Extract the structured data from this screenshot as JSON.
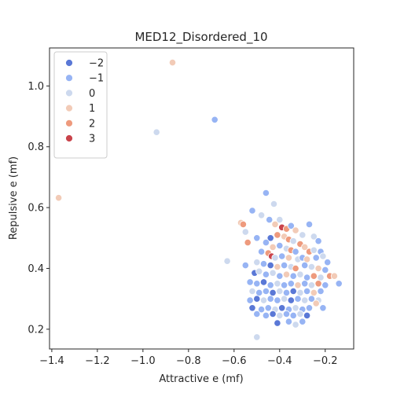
{
  "chart_data": {
    "type": "scatter",
    "title": "MED12_Disordered_10",
    "xlabel": "Attractive e (mf)",
    "ylabel": "Repulsive e (mf)",
    "xlim": [
      -1.41,
      -0.075
    ],
    "ylim": [
      0.135,
      1.125
    ],
    "xticks": [
      -1.4,
      -1.2,
      -1.0,
      -0.8,
      -0.6,
      -0.4,
      -0.2
    ],
    "xtick_labels": [
      "−1.4",
      "−1.2",
      "−1.0",
      "−0.8",
      "−0.6",
      "−0.4",
      "−0.2"
    ],
    "yticks": [
      0.2,
      0.4,
      0.6,
      0.8,
      1.0
    ],
    "ytick_labels": [
      "0.2",
      "0.4",
      "0.6",
      "0.8",
      "1.0"
    ],
    "grid": false,
    "legend_position": "top-left",
    "hue_levels": [
      {
        "value": -2,
        "label": "−2",
        "color": "#5a78d6"
      },
      {
        "value": -1,
        "label": "−1",
        "color": "#97b4f4"
      },
      {
        "value": 0,
        "label": "0",
        "color": "#cdd9ee"
      },
      {
        "value": 1,
        "label": "1",
        "color": "#f2cbb7"
      },
      {
        "value": 2,
        "label": "2",
        "color": "#ee9a7d"
      },
      {
        "value": 3,
        "label": "3",
        "color": "#c9434b"
      }
    ],
    "points": [
      {
        "x": -1.37,
        "y": 0.632,
        "hue": 1
      },
      {
        "x": -0.87,
        "y": 1.077,
        "hue": 1
      },
      {
        "x": -0.94,
        "y": 0.848,
        "hue": 0
      },
      {
        "x": -0.685,
        "y": 0.889,
        "hue": -1
      },
      {
        "x": -0.63,
        "y": 0.424,
        "hue": 0
      },
      {
        "x": -0.57,
        "y": 0.55,
        "hue": 1
      },
      {
        "x": -0.56,
        "y": 0.545,
        "hue": 2
      },
      {
        "x": -0.5,
        "y": 0.174,
        "hue": 0
      },
      {
        "x": -0.46,
        "y": 0.648,
        "hue": -1
      },
      {
        "x": -0.425,
        "y": 0.612,
        "hue": 0
      },
      {
        "x": -0.52,
        "y": 0.59,
        "hue": -1
      },
      {
        "x": -0.55,
        "y": 0.52,
        "hue": 0
      },
      {
        "x": -0.54,
        "y": 0.485,
        "hue": 2
      },
      {
        "x": -0.5,
        "y": 0.5,
        "hue": -1
      },
      {
        "x": -0.48,
        "y": 0.575,
        "hue": 0
      },
      {
        "x": -0.445,
        "y": 0.56,
        "hue": -1
      },
      {
        "x": -0.4,
        "y": 0.56,
        "hue": 0
      },
      {
        "x": -0.42,
        "y": 0.545,
        "hue": 1
      },
      {
        "x": -0.39,
        "y": 0.535,
        "hue": 3
      },
      {
        "x": -0.37,
        "y": 0.53,
        "hue": 2
      },
      {
        "x": -0.35,
        "y": 0.54,
        "hue": -1
      },
      {
        "x": -0.33,
        "y": 0.525,
        "hue": 1
      },
      {
        "x": -0.3,
        "y": 0.51,
        "hue": 0
      },
      {
        "x": -0.27,
        "y": 0.545,
        "hue": -1
      },
      {
        "x": -0.25,
        "y": 0.505,
        "hue": 0
      },
      {
        "x": -0.23,
        "y": 0.49,
        "hue": -1
      },
      {
        "x": -0.41,
        "y": 0.51,
        "hue": 2
      },
      {
        "x": -0.38,
        "y": 0.505,
        "hue": 1
      },
      {
        "x": -0.36,
        "y": 0.495,
        "hue": 2
      },
      {
        "x": -0.34,
        "y": 0.49,
        "hue": 0
      },
      {
        "x": -0.31,
        "y": 0.48,
        "hue": 2
      },
      {
        "x": -0.29,
        "y": 0.47,
        "hue": 1
      },
      {
        "x": -0.44,
        "y": 0.5,
        "hue": -2
      },
      {
        "x": -0.46,
        "y": 0.485,
        "hue": -1
      },
      {
        "x": -0.43,
        "y": 0.47,
        "hue": 1
      },
      {
        "x": -0.4,
        "y": 0.475,
        "hue": -1
      },
      {
        "x": -0.37,
        "y": 0.465,
        "hue": 0
      },
      {
        "x": -0.35,
        "y": 0.46,
        "hue": 2
      },
      {
        "x": -0.33,
        "y": 0.455,
        "hue": -1
      },
      {
        "x": -0.27,
        "y": 0.455,
        "hue": 2
      },
      {
        "x": -0.25,
        "y": 0.46,
        "hue": 0
      },
      {
        "x": -0.22,
        "y": 0.455,
        "hue": -1
      },
      {
        "x": -0.48,
        "y": 0.455,
        "hue": -1
      },
      {
        "x": -0.45,
        "y": 0.45,
        "hue": 2
      },
      {
        "x": -0.435,
        "y": 0.44,
        "hue": 3
      },
      {
        "x": -0.42,
        "y": 0.435,
        "hue": 0
      },
      {
        "x": -0.39,
        "y": 0.44,
        "hue": -1
      },
      {
        "x": -0.36,
        "y": 0.435,
        "hue": 1
      },
      {
        "x": -0.32,
        "y": 0.43,
        "hue": 0
      },
      {
        "x": -0.3,
        "y": 0.435,
        "hue": -1
      },
      {
        "x": -0.28,
        "y": 0.43,
        "hue": 1
      },
      {
        "x": -0.24,
        "y": 0.435,
        "hue": -1
      },
      {
        "x": -0.21,
        "y": 0.44,
        "hue": 0
      },
      {
        "x": -0.19,
        "y": 0.42,
        "hue": -1
      },
      {
        "x": -0.55,
        "y": 0.41,
        "hue": -1
      },
      {
        "x": -0.5,
        "y": 0.42,
        "hue": 0
      },
      {
        "x": -0.47,
        "y": 0.415,
        "hue": -1
      },
      {
        "x": -0.44,
        "y": 0.41,
        "hue": -2
      },
      {
        "x": -0.41,
        "y": 0.405,
        "hue": 1
      },
      {
        "x": -0.38,
        "y": 0.41,
        "hue": -1
      },
      {
        "x": -0.35,
        "y": 0.405,
        "hue": 0
      },
      {
        "x": -0.33,
        "y": 0.4,
        "hue": 2
      },
      {
        "x": -0.29,
        "y": 0.41,
        "hue": -1
      },
      {
        "x": -0.26,
        "y": 0.405,
        "hue": 0
      },
      {
        "x": -0.23,
        "y": 0.4,
        "hue": 1
      },
      {
        "x": -0.2,
        "y": 0.395,
        "hue": -1
      },
      {
        "x": -0.51,
        "y": 0.385,
        "hue": -2
      },
      {
        "x": -0.49,
        "y": 0.39,
        "hue": 0
      },
      {
        "x": -0.46,
        "y": 0.38,
        "hue": -1
      },
      {
        "x": -0.43,
        "y": 0.385,
        "hue": 0
      },
      {
        "x": -0.4,
        "y": 0.375,
        "hue": -1
      },
      {
        "x": -0.37,
        "y": 0.38,
        "hue": 1
      },
      {
        "x": -0.34,
        "y": 0.375,
        "hue": -1
      },
      {
        "x": -0.31,
        "y": 0.38,
        "hue": 0
      },
      {
        "x": -0.28,
        "y": 0.37,
        "hue": -1
      },
      {
        "x": -0.25,
        "y": 0.375,
        "hue": 2
      },
      {
        "x": -0.22,
        "y": 0.37,
        "hue": 0
      },
      {
        "x": -0.18,
        "y": 0.375,
        "hue": 2
      },
      {
        "x": -0.16,
        "y": 0.375,
        "hue": 1
      },
      {
        "x": -0.14,
        "y": 0.35,
        "hue": -1
      },
      {
        "x": -0.53,
        "y": 0.355,
        "hue": -1
      },
      {
        "x": -0.5,
        "y": 0.35,
        "hue": -1
      },
      {
        "x": -0.47,
        "y": 0.355,
        "hue": -2
      },
      {
        "x": -0.44,
        "y": 0.345,
        "hue": -1
      },
      {
        "x": -0.41,
        "y": 0.35,
        "hue": 0
      },
      {
        "x": -0.38,
        "y": 0.345,
        "hue": -1
      },
      {
        "x": -0.35,
        "y": 0.35,
        "hue": -1
      },
      {
        "x": -0.32,
        "y": 0.345,
        "hue": 1
      },
      {
        "x": -0.29,
        "y": 0.35,
        "hue": -1
      },
      {
        "x": -0.26,
        "y": 0.345,
        "hue": 0
      },
      {
        "x": -0.23,
        "y": 0.35,
        "hue": 2
      },
      {
        "x": -0.2,
        "y": 0.345,
        "hue": -1
      },
      {
        "x": -0.52,
        "y": 0.325,
        "hue": 0
      },
      {
        "x": -0.49,
        "y": 0.32,
        "hue": -1
      },
      {
        "x": -0.46,
        "y": 0.325,
        "hue": -1
      },
      {
        "x": -0.43,
        "y": 0.32,
        "hue": -2
      },
      {
        "x": -0.4,
        "y": 0.325,
        "hue": 0
      },
      {
        "x": -0.37,
        "y": 0.32,
        "hue": -1
      },
      {
        "x": -0.34,
        "y": 0.325,
        "hue": -2
      },
      {
        "x": -0.31,
        "y": 0.32,
        "hue": 0
      },
      {
        "x": -0.28,
        "y": 0.325,
        "hue": -1
      },
      {
        "x": -0.25,
        "y": 0.32,
        "hue": 1
      },
      {
        "x": -0.22,
        "y": 0.325,
        "hue": -1
      },
      {
        "x": -0.53,
        "y": 0.295,
        "hue": -1
      },
      {
        "x": -0.5,
        "y": 0.3,
        "hue": -2
      },
      {
        "x": -0.47,
        "y": 0.295,
        "hue": 0
      },
      {
        "x": -0.44,
        "y": 0.3,
        "hue": -1
      },
      {
        "x": -0.41,
        "y": 0.295,
        "hue": -1
      },
      {
        "x": -0.38,
        "y": 0.3,
        "hue": 0
      },
      {
        "x": -0.35,
        "y": 0.295,
        "hue": -2
      },
      {
        "x": -0.32,
        "y": 0.3,
        "hue": -1
      },
      {
        "x": -0.29,
        "y": 0.295,
        "hue": 0
      },
      {
        "x": -0.26,
        "y": 0.3,
        "hue": -1
      },
      {
        "x": -0.23,
        "y": 0.295,
        "hue": 0
      },
      {
        "x": -0.52,
        "y": 0.27,
        "hue": -2
      },
      {
        "x": -0.48,
        "y": 0.265,
        "hue": -1
      },
      {
        "x": -0.45,
        "y": 0.27,
        "hue": -1
      },
      {
        "x": -0.42,
        "y": 0.265,
        "hue": 0
      },
      {
        "x": -0.39,
        "y": 0.27,
        "hue": -2
      },
      {
        "x": -0.36,
        "y": 0.265,
        "hue": -1
      },
      {
        "x": -0.33,
        "y": 0.27,
        "hue": 0
      },
      {
        "x": -0.3,
        "y": 0.265,
        "hue": -1
      },
      {
        "x": -0.27,
        "y": 0.27,
        "hue": -1
      },
      {
        "x": -0.24,
        "y": 0.285,
        "hue": 1
      },
      {
        "x": -0.21,
        "y": 0.27,
        "hue": -1
      },
      {
        "x": -0.5,
        "y": 0.25,
        "hue": -1
      },
      {
        "x": -0.46,
        "y": 0.245,
        "hue": -1
      },
      {
        "x": -0.43,
        "y": 0.25,
        "hue": -2
      },
      {
        "x": -0.4,
        "y": 0.245,
        "hue": 0
      },
      {
        "x": -0.37,
        "y": 0.25,
        "hue": -1
      },
      {
        "x": -0.34,
        "y": 0.245,
        "hue": -1
      },
      {
        "x": -0.31,
        "y": 0.25,
        "hue": 0
      },
      {
        "x": -0.28,
        "y": 0.245,
        "hue": -2
      },
      {
        "x": -0.41,
        "y": 0.22,
        "hue": -2
      },
      {
        "x": -0.36,
        "y": 0.225,
        "hue": -1
      },
      {
        "x": -0.33,
        "y": 0.215,
        "hue": 0
      },
      {
        "x": -0.3,
        "y": 0.225,
        "hue": -1
      }
    ]
  }
}
